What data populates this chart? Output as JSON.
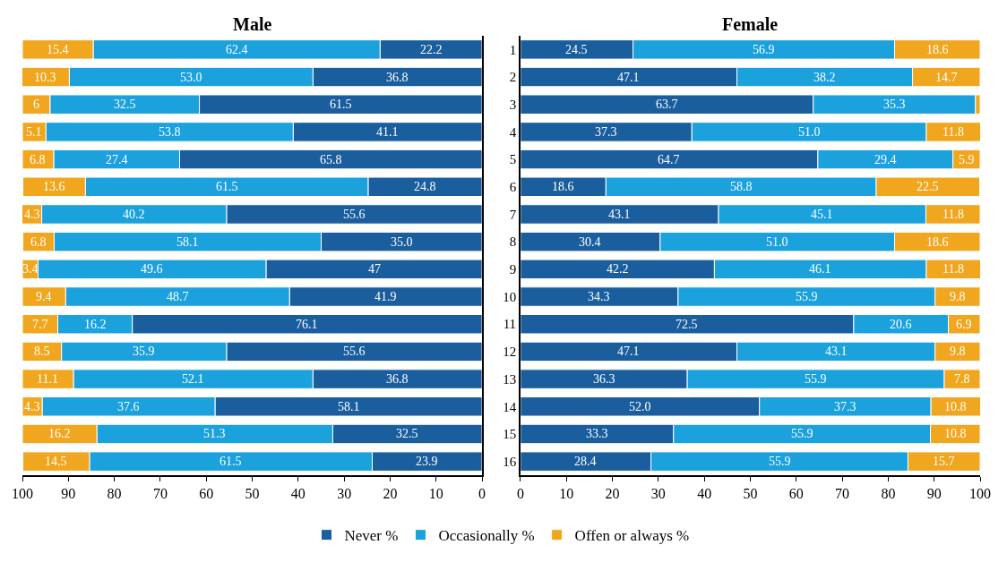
{
  "chart_data": [
    {
      "type": "bar",
      "orientation": "horizontal",
      "stacked": true,
      "title": "Male",
      "categories": [
        "1",
        "2",
        "3",
        "4",
        "5",
        "6",
        "7",
        "8",
        "9",
        "10",
        "11",
        "12",
        "13",
        "14",
        "15",
        "16"
      ],
      "xlim": [
        100,
        0
      ],
      "xticks": [
        100,
        90,
        80,
        70,
        60,
        50,
        40,
        30,
        20,
        10,
        0
      ],
      "tick_labels": "x",
      "legend": "bottom",
      "series": [
        {
          "name": "Never %",
          "color": "#1a5e9e",
          "values": [
            22.2,
            36.8,
            61.5,
            41.1,
            65.8,
            24.8,
            55.6,
            35.0,
            47,
            41.9,
            76.1,
            55.6,
            36.8,
            58.1,
            32.5,
            23.9
          ],
          "value_labels": [
            "22.2",
            "36.8",
            "61.5",
            "41.1",
            "65.8",
            "24.8",
            "55.6",
            "35.0",
            "47",
            "41.9",
            "76.1",
            "55.6",
            "36.8",
            "58.1",
            "32.5",
            "23.9"
          ]
        },
        {
          "name": "Occasionally %",
          "color": "#1ba1dc",
          "values": [
            62.4,
            53.0,
            32.5,
            53.8,
            27.4,
            61.5,
            40.2,
            58.1,
            49.6,
            48.7,
            16.2,
            35.9,
            52.1,
            37.6,
            51.3,
            61.5
          ],
          "value_labels": [
            "62.4",
            "53.0",
            "32.5",
            "53.8",
            "27.4",
            "61.5",
            "40.2",
            "58.1",
            "49.6",
            "48.7",
            "16.2",
            "35.9",
            "52.1",
            "37.6",
            "51.3",
            "61.5"
          ]
        },
        {
          "name": "Offen or always %",
          "color": "#f0a61e",
          "values": [
            15.4,
            10.3,
            6,
            5.1,
            6.8,
            13.6,
            4.3,
            6.8,
            3.4,
            9.4,
            7.7,
            8.5,
            11.1,
            4.3,
            16.2,
            14.5
          ],
          "value_labels": [
            "15.4",
            "10.3",
            "6",
            "5.1",
            "6.8",
            "13.6",
            "4.3",
            "6.8",
            "3.4",
            "9.4",
            "7.7",
            "8.5",
            "11.1",
            "4.3",
            "16.2",
            "14.5"
          ]
        }
      ]
    },
    {
      "type": "bar",
      "orientation": "horizontal",
      "stacked": true,
      "title": "Female",
      "categories": [
        "1",
        "2",
        "3",
        "4",
        "5",
        "6",
        "7",
        "8",
        "9",
        "10",
        "11",
        "12",
        "13",
        "14",
        "15",
        "16"
      ],
      "xlim": [
        0,
        100
      ],
      "xticks": [
        0,
        10,
        20,
        30,
        40,
        50,
        60,
        70,
        80,
        90,
        100
      ],
      "legend": "bottom",
      "series": [
        {
          "name": "Never %",
          "color": "#1a5e9e",
          "values": [
            24.5,
            47.1,
            63.7,
            37.3,
            64.7,
            18.6,
            43.1,
            30.4,
            42.2,
            34.3,
            72.5,
            47.1,
            36.3,
            52.0,
            33.3,
            28.4
          ],
          "value_labels": [
            "24.5",
            "47.1",
            "63.7",
            "37.3",
            "64.7",
            "18.6",
            "43.1",
            "30.4",
            "42.2",
            "34.3",
            "72.5",
            "47.1",
            "36.3",
            "52.0",
            "33.3",
            "28.4"
          ]
        },
        {
          "name": "Occasionally %",
          "color": "#1ba1dc",
          "values": [
            56.9,
            38.2,
            35.3,
            51.0,
            29.4,
            58.8,
            45.1,
            51.0,
            46.1,
            55.9,
            20.6,
            43.1,
            55.9,
            37.3,
            55.9,
            55.9
          ],
          "value_labels": [
            "56.9",
            "38.2",
            "35.3",
            "51.0",
            "29.4",
            "58.8",
            "45.1",
            "51.0",
            "46.1",
            "55.9",
            "20.6",
            "43.1",
            "55.9",
            "37.3",
            "55.9",
            "55.9"
          ]
        },
        {
          "name": "Offen or always %",
          "color": "#f0a61e",
          "values": [
            18.6,
            14.7,
            1.0,
            11.8,
            5.9,
            22.5,
            11.8,
            18.6,
            11.8,
            9.8,
            6.9,
            9.8,
            7.8,
            10.8,
            10.8,
            15.7
          ],
          "value_labels": [
            "18.6",
            "14.7",
            null,
            "11.8",
            "5.9",
            "22.5",
            "11.8",
            "18.6",
            "11.8",
            "9.8",
            "6.9",
            "9.8",
            "7.8",
            "10.8",
            "10.8",
            "15.7"
          ]
        }
      ]
    }
  ]
}
